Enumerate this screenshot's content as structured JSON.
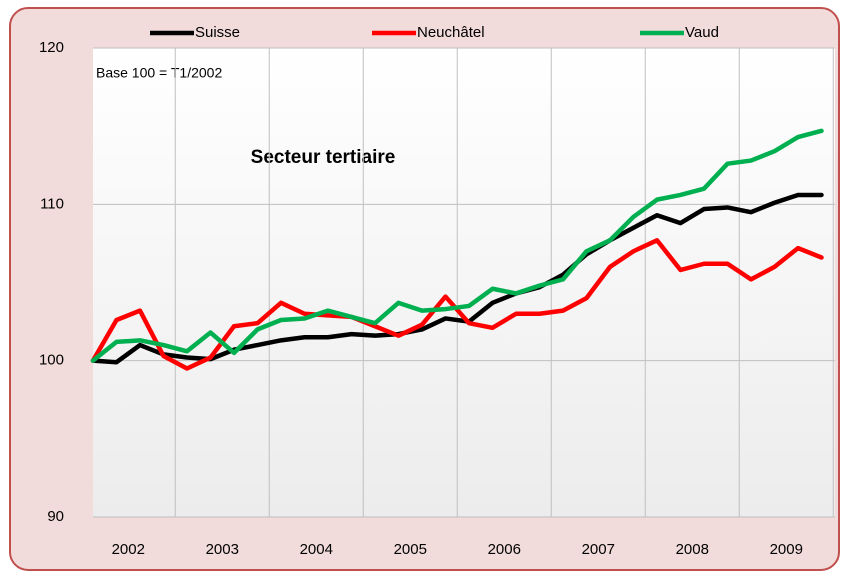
{
  "chart_data": {
    "type": "line",
    "title": "Secteur tertiaire",
    "annotation": "Base 100 = T1/2002",
    "categories": [
      "2002",
      null,
      null,
      null,
      "2003",
      null,
      null,
      null,
      "2004",
      null,
      null,
      null,
      "2005",
      null,
      null,
      null,
      "2006",
      null,
      null,
      null,
      "2007",
      null,
      null,
      null,
      "2008",
      null,
      null,
      null,
      "2009",
      null,
      null,
      null
    ],
    "series": [
      {
        "name": "Suisse",
        "color": "#000000",
        "values": [
          100,
          99.9,
          101,
          100.4,
          100.2,
          100.1,
          100.7,
          101,
          101.3,
          101.5,
          101.5,
          101.7,
          101.6,
          101.7,
          102,
          102.7,
          102.5,
          103.7,
          104.3,
          104.7,
          105.5,
          106.8,
          107.7,
          108.5,
          109.3,
          108.8,
          109.7,
          109.8,
          109.5,
          110.1,
          110.6,
          110.6
        ]
      },
      {
        "name": "Neuchâtel",
        "color": "#ff0000",
        "values": [
          100,
          102.6,
          103.2,
          100.3,
          99.5,
          100.2,
          102.2,
          102.4,
          103.7,
          103,
          102.9,
          102.8,
          102.2,
          101.6,
          102.3,
          104.1,
          102.4,
          102.1,
          103,
          103,
          103.2,
          104,
          106,
          107,
          107.7,
          105.8,
          106.2,
          106.2,
          105.2,
          106,
          107.2,
          106.6
        ]
      },
      {
        "name": "Vaud",
        "color": "#00b050",
        "values": [
          100,
          101.2,
          101.3,
          101,
          100.6,
          101.8,
          100.5,
          102,
          102.6,
          102.7,
          103.2,
          102.8,
          102.4,
          103.7,
          103.2,
          103.3,
          103.5,
          104.6,
          104.3,
          104.8,
          105.2,
          107,
          107.7,
          109.2,
          110.3,
          110.6,
          111,
          112.6,
          112.8,
          113.4,
          114.3,
          114.7
        ]
      }
    ],
    "ylim": [
      90,
      120
    ],
    "yticks": [
      90,
      100,
      110,
      120
    ],
    "grid": true
  }
}
